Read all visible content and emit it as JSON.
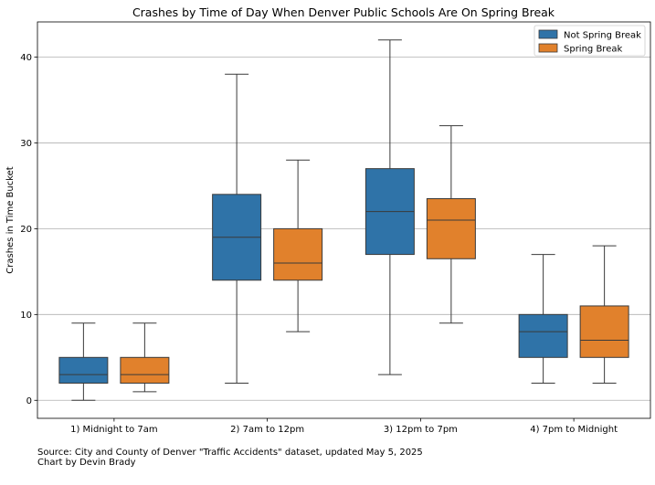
{
  "chart_data": {
    "type": "box",
    "title": "Crashes by Time of Day When Denver Public Schools Are On Spring Break",
    "xlabel": "",
    "ylabel": "Crashes in Time Bucket",
    "ylim": [
      -2.1,
      44.1
    ],
    "yticks": [
      0,
      10,
      20,
      30,
      40
    ],
    "grid": "horizontal",
    "legend_position": "top-right",
    "categories": [
      "1) Midnight to 7am",
      "2) 7am to 12pm",
      "3) 12pm to 7pm",
      "4) 7pm to Midnight"
    ],
    "series": [
      {
        "name": "Not Spring Break",
        "color": "#2f73a8",
        "boxes": [
          {
            "min": 0,
            "q1": 2,
            "median": 3,
            "q3": 5,
            "max": 9
          },
          {
            "min": 2,
            "q1": 14,
            "median": 19,
            "q3": 24,
            "max": 38
          },
          {
            "min": 3,
            "q1": 17,
            "median": 22,
            "q3": 27,
            "max": 42
          },
          {
            "min": 2,
            "q1": 5,
            "median": 8,
            "q3": 10,
            "max": 17
          }
        ]
      },
      {
        "name": "Spring Break",
        "color": "#e1812c",
        "boxes": [
          {
            "min": 1,
            "q1": 2,
            "median": 3,
            "q3": 5,
            "max": 9
          },
          {
            "min": 8,
            "q1": 14,
            "median": 16,
            "q3": 20,
            "max": 28
          },
          {
            "min": 9,
            "q1": 16.5,
            "median": 21,
            "q3": 23.5,
            "max": 32
          },
          {
            "min": 2,
            "q1": 5,
            "median": 7,
            "q3": 11,
            "max": 18
          }
        ]
      }
    ]
  },
  "footer": {
    "source": "Source: City and County of Denver \"Traffic Accidents\" dataset, updated May 5, 2025",
    "credit": "Chart by Devin Brady"
  }
}
